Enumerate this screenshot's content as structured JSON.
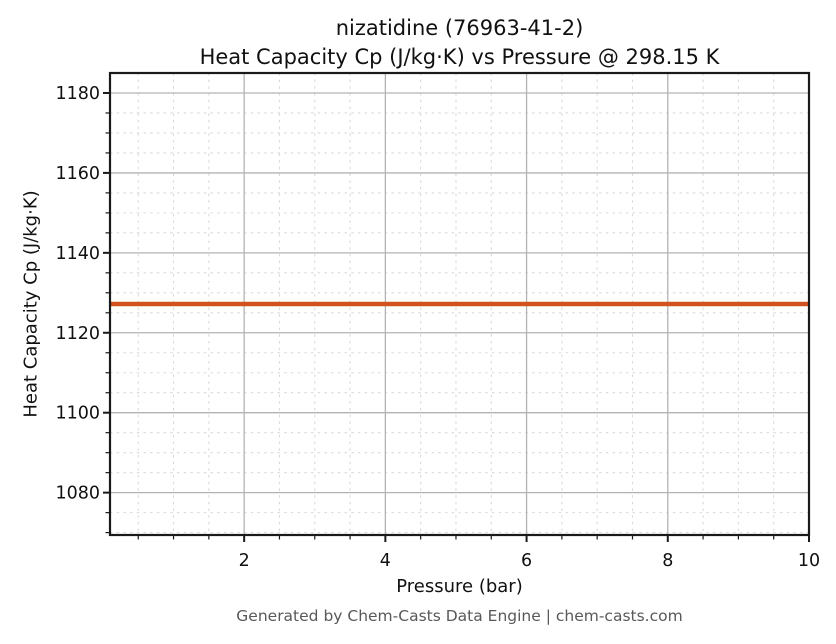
{
  "title": {
    "line1": "nizatidine (76963-41-2)",
    "line2": "Heat Capacity Cp (J/kg·K) vs Pressure @ 298.15 K"
  },
  "footer": {
    "text": "Generated by Chem-Casts Data Engine | chem-casts.com",
    "color": "#595959"
  },
  "chart_data": {
    "type": "line",
    "title": "nizatidine (76963-41-2) — Heat Capacity Cp (J/kg·K) vs Pressure @ 298.15 K",
    "xlabel": "Pressure (bar)",
    "ylabel": "Heat Capacity Cp (J/kg·K)",
    "xlim": [
      0.1,
      10.0
    ],
    "ylim": [
      1069.4,
      1185.0
    ],
    "xticks": [
      2,
      4,
      6,
      8,
      10
    ],
    "yticks": [
      1080,
      1100,
      1120,
      1140,
      1160,
      1180
    ],
    "x_minor_step": 0.5,
    "y_minor_step": 5,
    "grid": {
      "major": true,
      "minor": true
    },
    "legend": false,
    "series": [
      {
        "name": "Heat Capacity Cp",
        "x": [
          0.1,
          10.0
        ],
        "y": [
          1127.2,
          1127.2
        ],
        "color": "#d2521e",
        "width": 4.5
      }
    ]
  },
  "style": {
    "spine_color": "#1a1a1a",
    "major_grid_color": "#b3b3b3",
    "minor_grid_color": "#dadada",
    "tick_color": "#1a1a1a",
    "tick_label_color": "#111111",
    "background": "#ffffff"
  }
}
